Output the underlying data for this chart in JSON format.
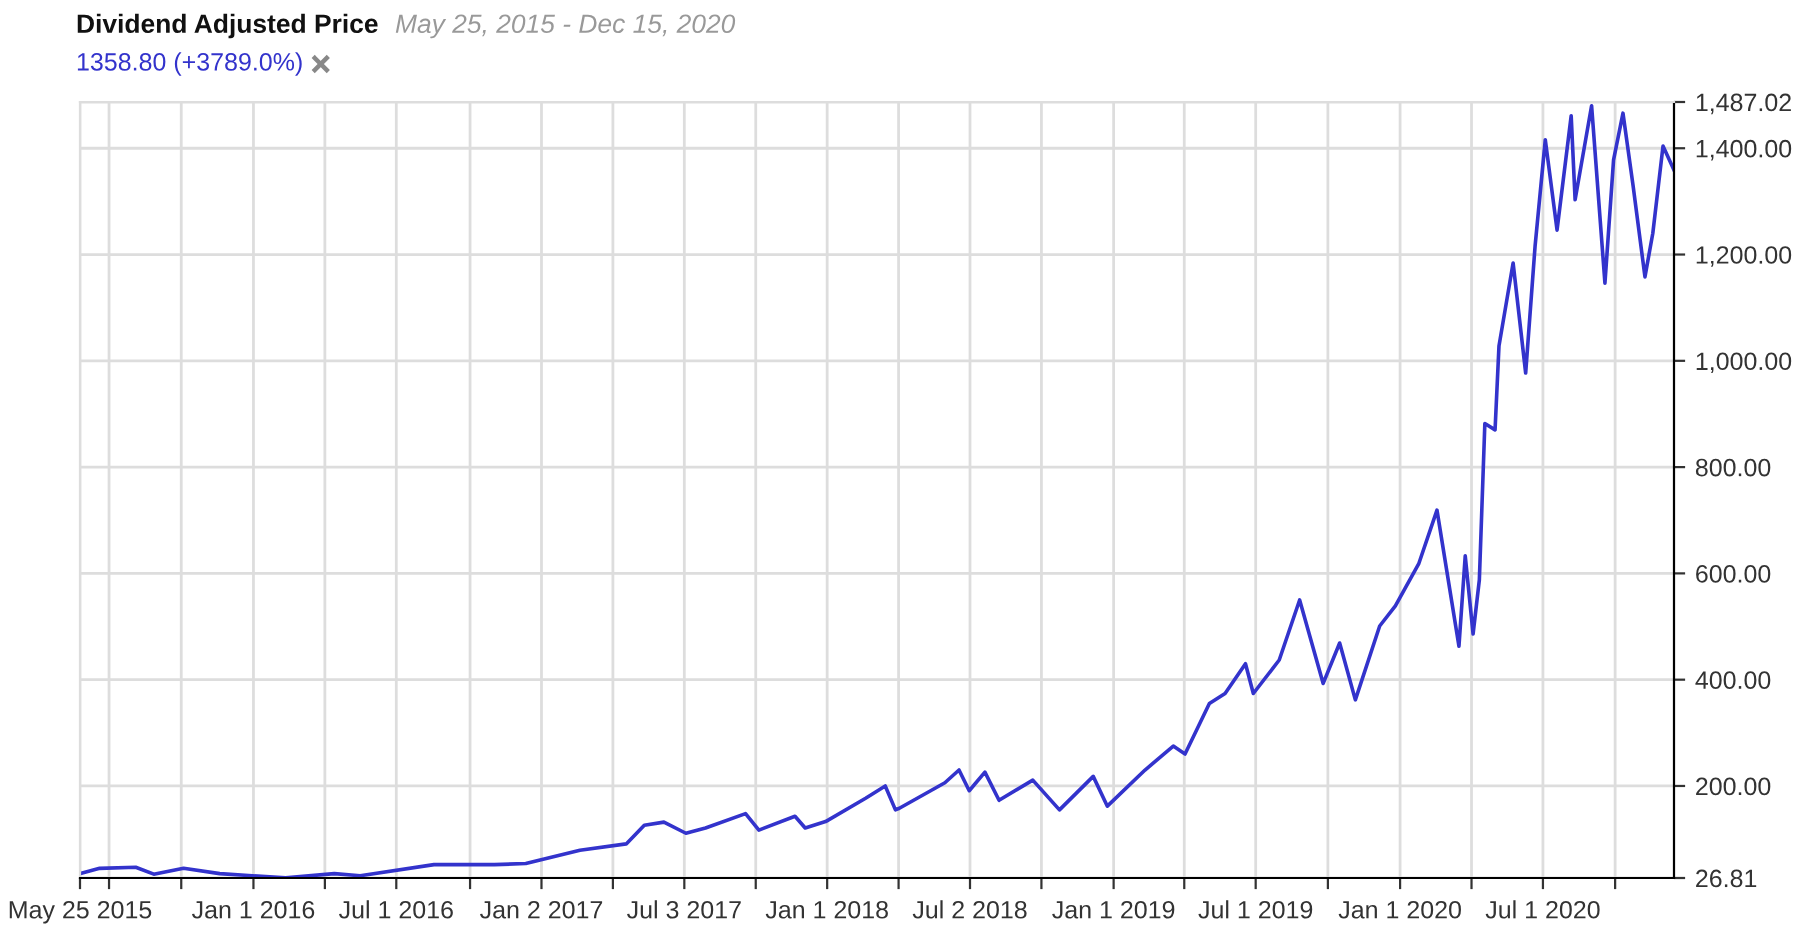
{
  "chart_data": {
    "type": "line",
    "title": "Dividend Adjusted Price",
    "subtitle": "May 25, 2015 - Dec 15, 2020",
    "x": [
      "2015-05-25",
      "2015-06-19",
      "2015-08-04",
      "2015-08-27",
      "2015-10-04",
      "2015-11-19",
      "2016-02-11",
      "2016-04-13",
      "2016-05-16",
      "2016-08-18",
      "2016-11-03",
      "2016-12-13",
      "2017-02-20",
      "2017-04-20",
      "2017-05-13",
      "2017-06-07",
      "2017-07-05",
      "2017-07-30",
      "2017-09-19",
      "2017-10-06",
      "2017-11-21",
      "2017-12-04",
      "2017-12-30",
      "2018-02-19",
      "2018-03-16",
      "2018-03-29",
      "2018-04-03",
      "2018-05-31",
      "2018-06-18",
      "2018-07-01",
      "2018-07-21",
      "2018-08-08",
      "2018-09-20",
      "2018-10-24",
      "2018-12-06",
      "2018-12-24",
      "2019-02-10",
      "2019-03-18",
      "2019-04-02",
      "2019-05-03",
      "2019-05-23",
      "2019-06-18",
      "2019-06-28",
      "2019-07-31",
      "2019-08-26",
      "2019-09-25",
      "2019-10-16",
      "2019-11-05",
      "2019-12-06",
      "2019-12-26",
      "2020-01-25",
      "2020-02-17",
      "2020-03-16",
      "2020-03-24",
      "2020-04-03",
      "2020-04-11",
      "2020-04-18",
      "2020-05-01",
      "2020-05-06",
      "2020-05-24",
      "2020-06-09",
      "2020-06-21",
      "2020-07-04",
      "2020-07-19",
      "2020-08-06",
      "2020-08-11",
      "2020-09-01",
      "2020-09-18",
      "2020-09-29",
      "2020-10-11",
      "2020-10-24",
      "2020-11-08",
      "2020-11-18",
      "2020-12-01",
      "2020-12-15"
    ],
    "series": [
      {
        "name": "1358.80 (+3789.0%)",
        "color": "#3333cc",
        "values": [
          35,
          45,
          47,
          34,
          45,
          35,
          27,
          35,
          31,
          52,
          52,
          54,
          79,
          91,
          126,
          132,
          111,
          121,
          148,
          117,
          143,
          121,
          133,
          177,
          200,
          155,
          158,
          206,
          230,
          191,
          226,
          173,
          211,
          155,
          218,
          162,
          230,
          275,
          260,
          355,
          374,
          430,
          374,
          437,
          550,
          393,
          469,
          362,
          501,
          539,
          619,
          719,
          463,
          633,
          486,
          588,
          882,
          870,
          1028,
          1184,
          977,
          1216,
          1416,
          1246,
          1461,
          1303,
          1480,
          1146,
          1378,
          1466,
          1328,
          1158,
          1240,
          1404,
          1358.8
        ]
      }
    ],
    "xlim": [
      "2015-05-25",
      "2020-12-15"
    ],
    "xticks": [
      {
        "value": "2015-05-25",
        "label": "May 25 2015"
      },
      {
        "value": "2015-07-01",
        "label": null
      },
      {
        "value": "2015-10-01",
        "label": null
      },
      {
        "value": "2016-01-01",
        "label": "Jan 1 2016"
      },
      {
        "value": "2016-04-01",
        "label": null
      },
      {
        "value": "2016-07-01",
        "label": "Jul 1 2016"
      },
      {
        "value": "2016-10-03",
        "label": null
      },
      {
        "value": "2017-01-02",
        "label": "Jan 2 2017"
      },
      {
        "value": "2017-04-03",
        "label": null
      },
      {
        "value": "2017-07-03",
        "label": "Jul 3 2017"
      },
      {
        "value": "2017-10-02",
        "label": null
      },
      {
        "value": "2018-01-01",
        "label": "Jan 1 2018"
      },
      {
        "value": "2018-04-02",
        "label": null
      },
      {
        "value": "2018-07-02",
        "label": "Jul 2 2018"
      },
      {
        "value": "2018-10-01",
        "label": null
      },
      {
        "value": "2019-01-01",
        "label": "Jan 1 2019"
      },
      {
        "value": "2019-04-01",
        "label": null
      },
      {
        "value": "2019-07-01",
        "label": "Jul 1 2019"
      },
      {
        "value": "2019-10-01",
        "label": null
      },
      {
        "value": "2020-01-01",
        "label": "Jan 1 2020"
      },
      {
        "value": "2020-04-01",
        "label": null
      },
      {
        "value": "2020-07-01",
        "label": "Jul 1 2020"
      },
      {
        "value": "2020-10-01",
        "label": null
      }
    ],
    "ylim": [
      26.81,
      1487.02
    ],
    "yticks": [
      {
        "value": 26.81,
        "label": "26.81"
      },
      {
        "value": 200,
        "label": "200.00"
      },
      {
        "value": 400,
        "label": "400.00"
      },
      {
        "value": 600,
        "label": "600.00"
      },
      {
        "value": 800,
        "label": "800.00"
      },
      {
        "value": 1000,
        "label": "1,000.00"
      },
      {
        "value": 1200,
        "label": "1,200.00"
      },
      {
        "value": 1400,
        "label": "1,400.00"
      },
      {
        "value": 1487.02,
        "label": "1,487.02"
      }
    ],
    "grid": true,
    "legend": "top left",
    "marker": "none",
    "line_style": "solid"
  }
}
